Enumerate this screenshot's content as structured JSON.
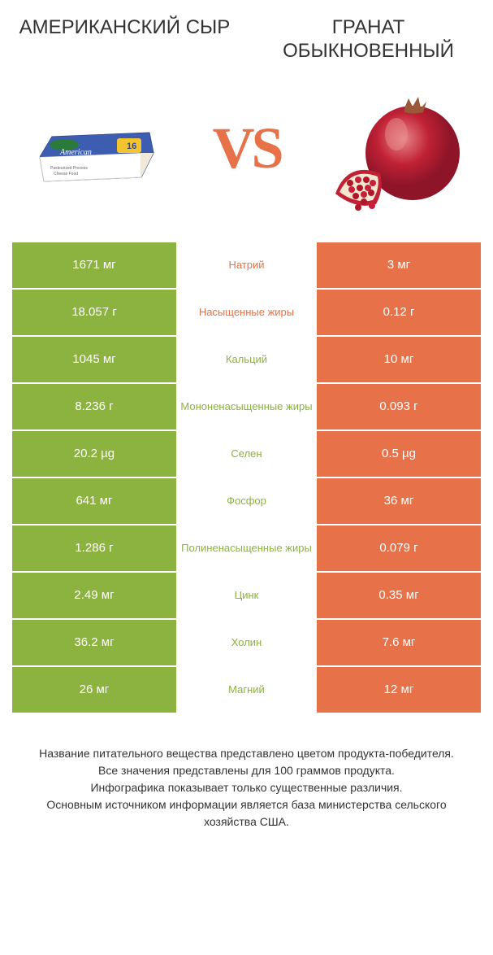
{
  "header": {
    "left_title": "АМЕРИКАНСКИЙ СЫР",
    "right_title": "ГРАНАТ ОБЫКНОВЕННЫЙ"
  },
  "vs_text": "VS",
  "colors": {
    "left": "#8cb23f",
    "right": "#e7724a",
    "text": "#333333",
    "white": "#ffffff"
  },
  "rows": [
    {
      "left": "1671 мг",
      "label": "Натрий",
      "winner": "orange",
      "right": "3 мг"
    },
    {
      "left": "18.057 г",
      "label": "Насыщенные жиры",
      "winner": "orange",
      "right": "0.12 г"
    },
    {
      "left": "1045 мг",
      "label": "Кальций",
      "winner": "green",
      "right": "10 мг"
    },
    {
      "left": "8.236 г",
      "label": "Мононенасыщенные жиры",
      "winner": "green",
      "right": "0.093 г"
    },
    {
      "left": "20.2 µg",
      "label": "Селен",
      "winner": "green",
      "right": "0.5 µg"
    },
    {
      "left": "641 мг",
      "label": "Фосфор",
      "winner": "green",
      "right": "36 мг"
    },
    {
      "left": "1.286 г",
      "label": "Полиненасыщенные жиры",
      "winner": "green",
      "right": "0.079 г"
    },
    {
      "left": "2.49 мг",
      "label": "Цинк",
      "winner": "green",
      "right": "0.35 мг"
    },
    {
      "left": "36.2 мг",
      "label": "Холин",
      "winner": "green",
      "right": "7.6 мг"
    },
    {
      "left": "26 мг",
      "label": "Магний",
      "winner": "green",
      "right": "12 мг"
    }
  ],
  "footer": {
    "line1": "Название питательного вещества представлено цветом продукта-победителя.",
    "line2": "Все значения представлены для 100 граммов продукта.",
    "line3": "Инфографика показывает только существенные различия.",
    "line4": "Основным источником информации является база министерства сельского хозяйства США."
  }
}
